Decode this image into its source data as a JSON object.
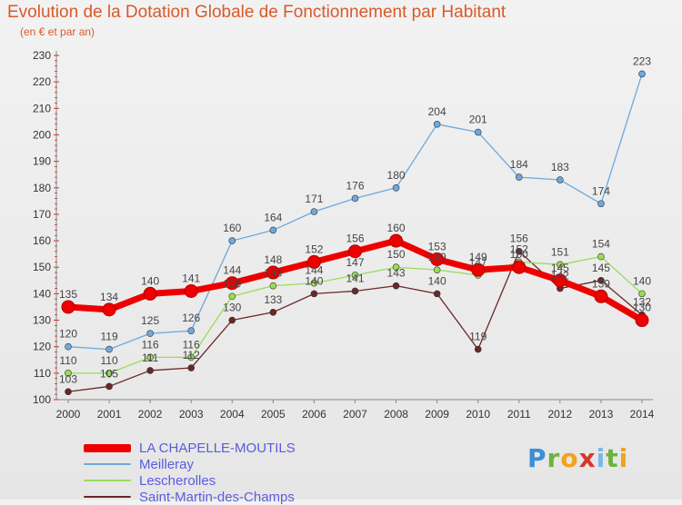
{
  "title": "Evolution de la Dotation Globale de Fonctionnement par Habitant",
  "subtitle": "(en € et par an)",
  "logo": {
    "text": "Proxiti",
    "colors": [
      "#3a8fd6",
      "#6cb33e",
      "#f3a21b",
      "#d9372b",
      "#7ab8e6",
      "#6cb33e",
      "#f3a21b"
    ]
  },
  "chart_data": {
    "type": "line",
    "x": [
      "2000",
      "2001",
      "2002",
      "2003",
      "2004",
      "2005",
      "2006",
      "2007",
      "2008",
      "2009",
      "2010",
      "2011",
      "2012",
      "2013",
      "2014"
    ],
    "ylim": [
      100,
      230
    ],
    "yticks": [
      100,
      110,
      120,
      130,
      140,
      150,
      160,
      170,
      180,
      190,
      200,
      210,
      220,
      230
    ],
    "grid": false,
    "legend_position": "bottom-left",
    "series": [
      {
        "name": "LA CHAPELLE-MOUTILS",
        "color": "#ee0000",
        "values": [
          135,
          134,
          140,
          141,
          144,
          148,
          152,
          156,
          160,
          153,
          149,
          150,
          145,
          139,
          130
        ],
        "labels": [
          "135",
          "134",
          "140",
          "141",
          "144",
          "148",
          "152",
          "156",
          "160",
          "153",
          "149",
          "150",
          "145",
          "139",
          "130"
        ]
      },
      {
        "name": "Meilleray",
        "color": "#6fa8dc",
        "values": [
          120,
          119,
          125,
          126,
          160,
          164,
          171,
          176,
          180,
          204,
          201,
          184,
          183,
          174,
          223
        ],
        "labels": [
          "120",
          "119",
          "125",
          "126",
          "160",
          "164",
          "171",
          "176",
          "180",
          "204",
          "201",
          "184",
          "183",
          "174",
          "223"
        ]
      },
      {
        "name": "Lescherolles",
        "color": "#99dd55",
        "values": [
          110,
          110,
          116,
          116,
          139,
          143,
          144,
          147,
          150,
          149,
          147,
          152,
          151,
          154,
          140
        ],
        "labels": [
          "110",
          "110",
          "116",
          "116",
          "139",
          "143",
          "144",
          "147",
          "150",
          "149",
          "147",
          "152",
          "151",
          "154",
          "140"
        ]
      },
      {
        "name": "Saint-Martin-des-Champs",
        "color": "#6b2727",
        "values": [
          103,
          105,
          111,
          112,
          130,
          133,
          140,
          141,
          143,
          140,
          119,
          156,
          142,
          145,
          132
        ],
        "labels": [
          "103",
          "105",
          "111",
          "112",
          "130",
          "133",
          "140",
          "141",
          "143",
          "140",
          "119",
          "156",
          "142",
          "145",
          "132"
        ]
      }
    ]
  }
}
